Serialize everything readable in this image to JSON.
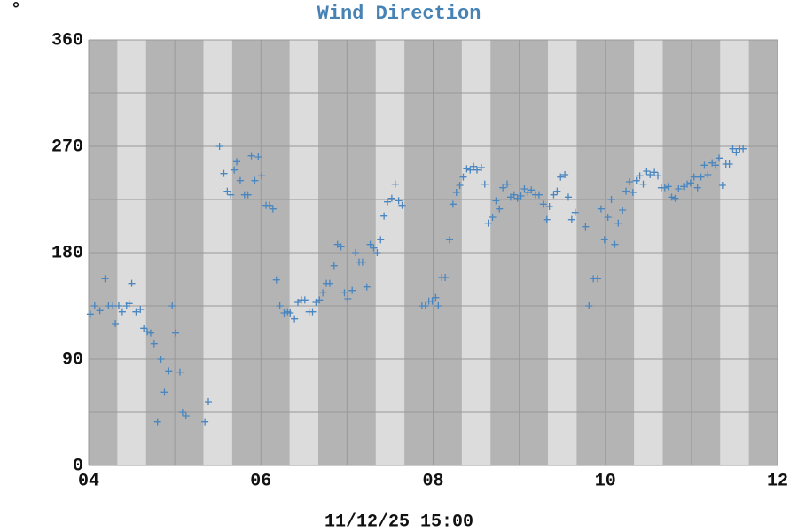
{
  "chart_data": {
    "type": "scatter",
    "title": "Wind Direction",
    "unit_symbol": "°",
    "xlabel": "11/12/25 15:00",
    "color": "#4a86c0",
    "x": [
      4.02,
      4.07,
      4.13,
      4.19,
      4.23,
      4.28,
      4.31,
      4.35,
      4.39,
      4.44,
      4.47,
      4.5,
      4.55,
      4.6,
      4.64,
      4.68,
      4.72,
      4.76,
      4.8,
      4.84,
      4.88,
      4.93,
      4.97,
      5.01,
      5.06,
      5.09,
      5.13,
      5.35,
      5.39,
      5.52,
      5.57,
      5.61,
      5.65,
      5.69,
      5.72,
      5.76,
      5.81,
      5.85,
      5.89,
      5.93,
      5.97,
      6.01,
      6.06,
      6.1,
      6.14,
      6.18,
      6.22,
      6.27,
      6.31,
      6.34,
      6.39,
      6.43,
      6.47,
      6.51,
      6.56,
      6.6,
      6.64,
      6.68,
      6.72,
      6.76,
      6.8,
      6.85,
      6.89,
      6.93,
      6.97,
      7.01,
      7.06,
      7.1,
      7.14,
      7.18,
      7.23,
      7.27,
      7.31,
      7.35,
      7.39,
      7.43,
      7.47,
      7.52,
      7.56,
      7.6,
      7.64,
      7.87,
      7.91,
      7.95,
      7.99,
      8.03,
      8.06,
      8.1,
      8.14,
      8.19,
      8.23,
      8.27,
      8.31,
      8.35,
      8.39,
      8.43,
      8.47,
      8.51,
      8.56,
      8.6,
      8.64,
      8.69,
      8.73,
      8.77,
      8.81,
      8.86,
      8.9,
      8.94,
      8.98,
      9.02,
      9.06,
      9.1,
      9.14,
      9.19,
      9.23,
      9.28,
      9.32,
      9.35,
      9.4,
      9.44,
      9.48,
      9.53,
      9.57,
      9.61,
      9.65,
      9.77,
      9.81,
      9.86,
      9.91,
      9.95,
      9.99,
      10.03,
      10.07,
      10.11,
      10.15,
      10.2,
      10.24,
      10.28,
      10.32,
      10.36,
      10.4,
      10.44,
      10.48,
      10.52,
      10.57,
      10.61,
      10.65,
      10.69,
      10.73,
      10.77,
      10.81,
      10.85,
      10.91,
      10.95,
      10.99,
      11.03,
      11.07,
      11.11,
      11.15,
      11.19,
      11.24,
      11.28,
      11.32,
      11.36,
      11.4,
      11.44,
      11.48,
      11.52,
      11.56,
      11.6
    ],
    "values": [
      128,
      135,
      131,
      158,
      135,
      135,
      120,
      135,
      130,
      135,
      137,
      154,
      130,
      132,
      116,
      113,
      112,
      103,
      37,
      90,
      62,
      80,
      135,
      112,
      79,
      45,
      42,
      37,
      54,
      270,
      247,
      232,
      229,
      250,
      257,
      241,
      229,
      229,
      262,
      241,
      261,
      245,
      220,
      220,
      217,
      157,
      135,
      129,
      130,
      129,
      124,
      138,
      140,
      140,
      130,
      130,
      138,
      140,
      146,
      154,
      154,
      169,
      187,
      185,
      146,
      141,
      148,
      180,
      172,
      172,
      151,
      187,
      184,
      180,
      191,
      211,
      223,
      226,
      238,
      224,
      220,
      135,
      135,
      139,
      139,
      142,
      135,
      159,
      159,
      191,
      221,
      231,
      237,
      244,
      251,
      250,
      253,
      250,
      252,
      238,
      205,
      210,
      224,
      217,
      235,
      238,
      227,
      229,
      226,
      228,
      234,
      231,
      233,
      229,
      229,
      221,
      208,
      219,
      229,
      232,
      244,
      246,
      227,
      208,
      214,
      202,
      135,
      158,
      158,
      217,
      191,
      210,
      225,
      187,
      205,
      216,
      232,
      240,
      231,
      241,
      245,
      238,
      249,
      246,
      248,
      245,
      235,
      235,
      236,
      227,
      226,
      234,
      236,
      238,
      239,
      244,
      235,
      244,
      254,
      246,
      256,
      254,
      260,
      237,
      255,
      255,
      268,
      265,
      268,
      268
    ],
    "xlim": [
      4,
      12
    ],
    "xticks": [
      {
        "value": 4,
        "label": "04"
      },
      {
        "value": 6,
        "label": "06"
      },
      {
        "value": 8,
        "label": "08"
      },
      {
        "value": 10,
        "label": "10"
      },
      {
        "value": 12,
        "label": "12"
      }
    ],
    "minor_xticks": [
      5,
      7,
      9,
      11
    ],
    "ylim": [
      0,
      360
    ],
    "yticks": [
      0,
      90,
      180,
      270,
      360
    ],
    "minor_yticks": [
      45,
      135,
      225,
      315
    ],
    "grid": true
  }
}
